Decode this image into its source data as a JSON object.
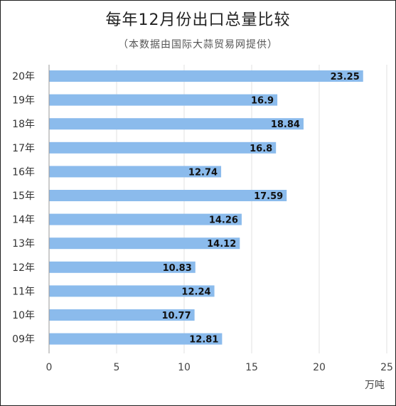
{
  "header": {
    "title": "每年12月份出口总量比较",
    "subtitle": "（本数据由国际大蒜贸易网提供）"
  },
  "chart_data": {
    "type": "bar",
    "orientation": "horizontal",
    "title": "每年12月份出口总量比较",
    "subtitle": "（本数据由国际大蒜贸易网提供）",
    "categories": [
      "20年",
      "19年",
      "18年",
      "17年",
      "16年",
      "15年",
      "14年",
      "13年",
      "12年",
      "11年",
      "10年",
      "09年"
    ],
    "values": [
      23.25,
      16.9,
      18.84,
      16.8,
      12.74,
      17.59,
      14.26,
      14.12,
      10.83,
      12.24,
      10.77,
      12.81
    ],
    "value_labels": [
      "23.25",
      "16.9",
      "18.84",
      "16.8",
      "12.74",
      "17.59",
      "14.26",
      "14.12",
      "10.83",
      "12.24",
      "10.77",
      "12.81"
    ],
    "xlim": [
      0,
      25
    ],
    "xticks": [
      0,
      5,
      10,
      15,
      20,
      25
    ],
    "xtick_labels": [
      "0",
      "5",
      "10",
      "15",
      "20",
      "25"
    ],
    "xlabel": "万吨",
    "ylabel": "",
    "grid": true,
    "legend": "none",
    "bar_color": "#8bbbec"
  }
}
